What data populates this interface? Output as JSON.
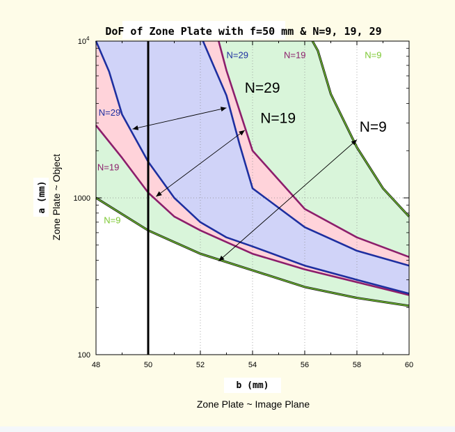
{
  "chart_data": {
    "type": "area",
    "title": "DoF of Zone Plate with f=50 mm & N=9, 19, 29",
    "xlabel": "b  (mm)",
    "xlabel_sub": "Zone Plate ~ Image Plane",
    "ylabel": "a  (mm)",
    "ylabel_sub": "Zone Plate ~ Object",
    "xlim": [
      48,
      60
    ],
    "ylim": [
      100,
      10000
    ],
    "yscale": "log",
    "x_ticks": [
      "48",
      "50",
      "52",
      "54",
      "56",
      "58",
      "60"
    ],
    "x_tick_values": [
      48,
      50,
      52,
      54,
      56,
      58,
      60
    ],
    "y_ticks": [
      {
        "value": 10000,
        "base": "10",
        "exp": "4"
      },
      {
        "value": 1000,
        "base": "1000",
        "exp": ""
      },
      {
        "value": 100,
        "base": "100",
        "exp": ""
      }
    ],
    "vertical_line_x": 50,
    "series": [
      {
        "name": "N=9",
        "color": "#6ab82a",
        "fill": "#d9f5da",
        "upper": [
          [
            56.3,
            10000
          ],
          [
            56.5,
            8700
          ],
          [
            57,
            4600
          ],
          [
            58,
            2100
          ],
          [
            59,
            1150
          ],
          [
            60,
            760
          ]
        ],
        "lower": [
          [
            48,
            1000
          ],
          [
            50,
            620
          ],
          [
            52,
            440
          ],
          [
            54,
            345
          ],
          [
            56,
            270
          ],
          [
            58,
            230
          ],
          [
            60,
            205
          ]
        ]
      },
      {
        "name": "N=19",
        "color": "#8c1e6b",
        "fill": "#ffd3da",
        "upper": [
          [
            52.7,
            10000
          ],
          [
            53,
            6500
          ],
          [
            54,
            2000
          ],
          [
            56,
            850
          ],
          [
            58,
            560
          ],
          [
            60,
            420
          ]
        ],
        "lower": [
          [
            48,
            2900
          ],
          [
            49,
            1800
          ],
          [
            50,
            1080
          ],
          [
            51,
            760
          ],
          [
            52,
            620
          ],
          [
            54,
            440
          ],
          [
            56,
            350
          ],
          [
            58,
            290
          ],
          [
            60,
            240
          ]
        ]
      },
      {
        "name": "N=29",
        "color": "#1d2fa0",
        "fill": "#d0d3f8",
        "upper": [
          [
            52.1,
            10000
          ],
          [
            52.5,
            7000
          ],
          [
            53,
            4500
          ],
          [
            53.5,
            2200
          ],
          [
            54,
            1150
          ],
          [
            56,
            650
          ],
          [
            58,
            460
          ],
          [
            60,
            370
          ]
        ],
        "lower": [
          [
            48,
            10000
          ],
          [
            48.5,
            6400
          ],
          [
            49,
            3400
          ],
          [
            50,
            1700
          ],
          [
            51,
            1000
          ],
          [
            52,
            700
          ],
          [
            53,
            560
          ],
          [
            54,
            490
          ],
          [
            56,
            370
          ],
          [
            58,
            300
          ],
          [
            60,
            245
          ]
        ]
      }
    ],
    "labels": [
      {
        "text": "N=29",
        "x": 53.0,
        "y": 7800,
        "color": "#1d2fa0",
        "size": "small"
      },
      {
        "text": "N=19",
        "x": 55.2,
        "y": 7800,
        "color": "#8c1e6b",
        "size": "small"
      },
      {
        "text": "N=9",
        "x": 58.3,
        "y": 7800,
        "color": "#7cc832",
        "size": "small"
      },
      {
        "text": "N=29",
        "x": 48.1,
        "y": 3350,
        "color": "#1d2fa0",
        "size": "small"
      },
      {
        "text": "N=19",
        "x": 48.05,
        "y": 1500,
        "color": "#8c1e6b",
        "size": "small"
      },
      {
        "text": "N=9",
        "x": 48.3,
        "y": 690,
        "color": "#7cc832",
        "size": "small"
      },
      {
        "text": "N=29",
        "x": 53.7,
        "y": 4700,
        "color": "#000000",
        "size": "large"
      },
      {
        "text": "N=19",
        "x": 54.3,
        "y": 3000,
        "color": "#000000",
        "size": "large"
      },
      {
        "text": "N=9",
        "x": 58.1,
        "y": 2650,
        "color": "#000000",
        "size": "large"
      }
    ],
    "arrows": [
      {
        "from": [
          49.4,
          2750
        ],
        "to": [
          53.0,
          3750
        ]
      },
      {
        "from": [
          50.3,
          1020
        ],
        "to": [
          53.7,
          2700
        ]
      },
      {
        "from": [
          52.7,
          395
        ],
        "to": [
          58.0,
          2350
        ]
      }
    ]
  }
}
